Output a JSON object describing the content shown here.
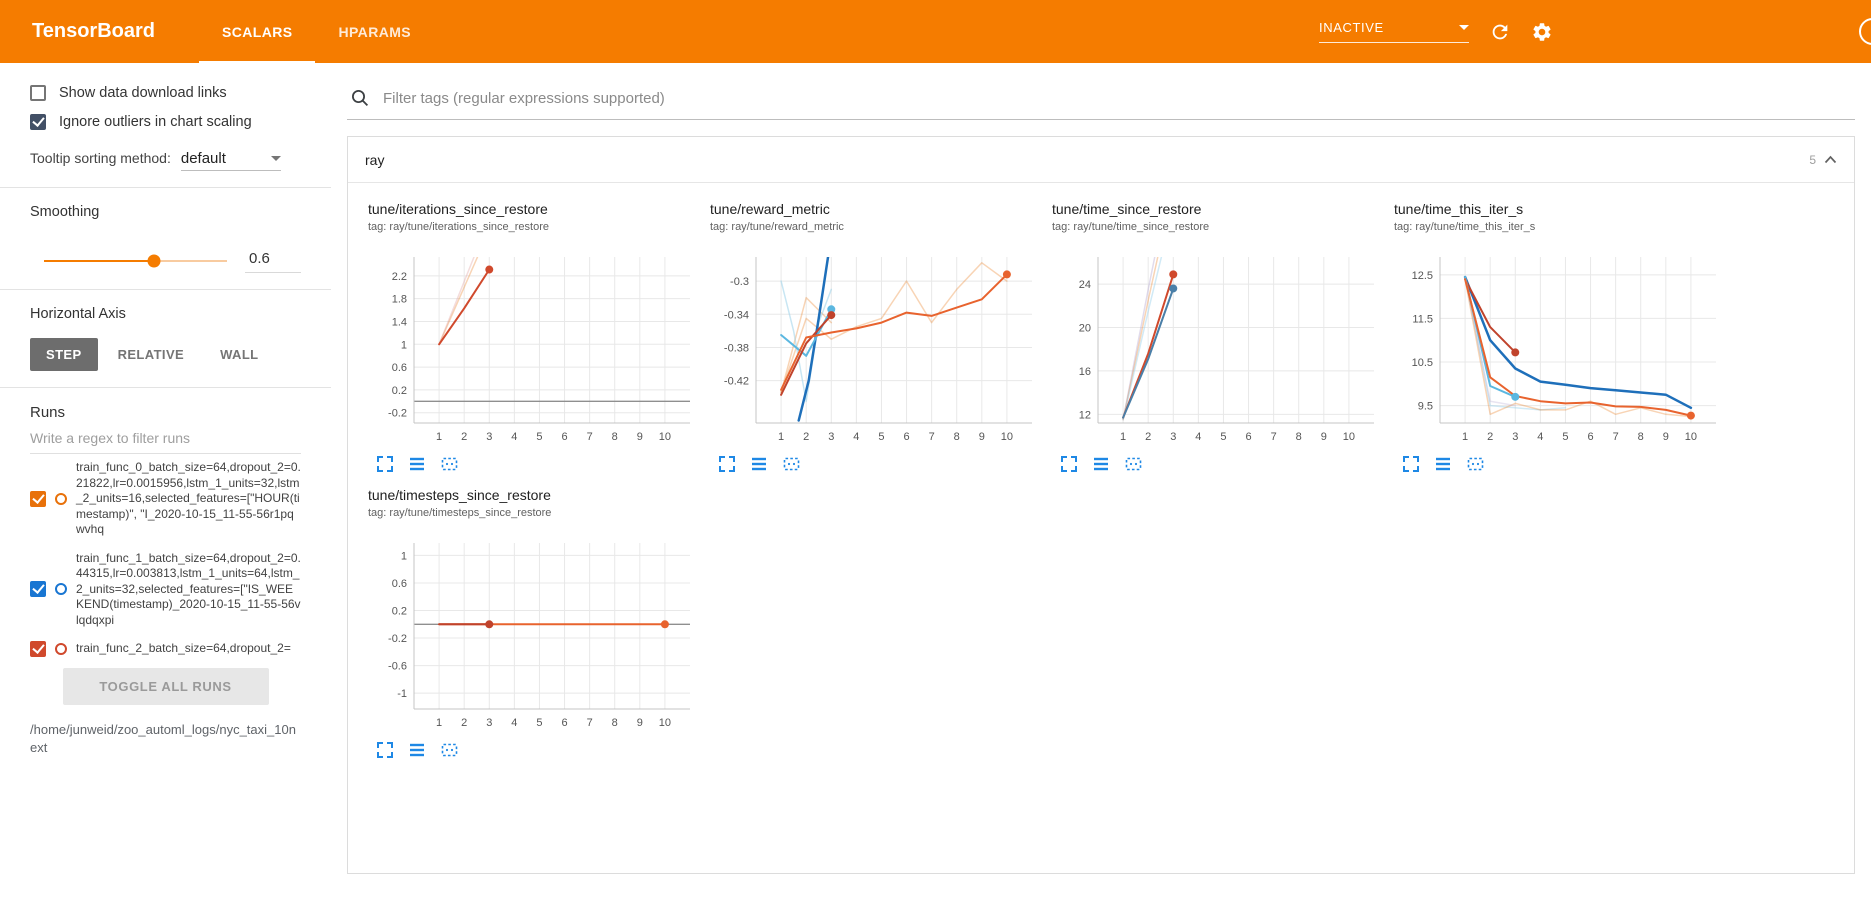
{
  "header": {
    "title": "TensorBoard",
    "tabs": [
      "SCALARS",
      "HPARAMS"
    ],
    "active_tab": "SCALARS",
    "status_dropdown": "INACTIVE",
    "icon_names": [
      "chevron-down-icon",
      "refresh-icon",
      "gear-icon",
      "help-icon"
    ]
  },
  "sidebar": {
    "show_download": {
      "label": "Show data download links",
      "checked": false
    },
    "ignore_outliers": {
      "label": "Ignore outliers in chart scaling",
      "checked": true,
      "check_color": "#425066"
    },
    "tooltip_sorting": {
      "label": "Tooltip sorting method:",
      "value": "default"
    },
    "smoothing": {
      "label": "Smoothing",
      "value": "0.6"
    },
    "horizontal_axis": {
      "label": "Horizontal Axis",
      "options": [
        "STEP",
        "RELATIVE",
        "WALL"
      ],
      "selected": "STEP"
    },
    "runs": {
      "label": "Runs",
      "filter_placeholder": "Write a regex to filter runs",
      "items": [
        {
          "label": "train_func_0_batch_size=64,dropout_2=0.21822,lr=0.0015956,lstm_1_units=32,lstm_2_units=16,selected_features=[\"HOUR(timestamp)\", \"I_2020-10-15_11-55-56r1pqwvhq",
          "checked": true,
          "color": "#e8710a"
        },
        {
          "label": "train_func_1_batch_size=64,dropout_2=0.44315,lr=0.003813,lstm_1_units=64,lstm_2_units=32,selected_features=[\"IS_WEEKEND(timestamp)_2020-10-15_11-55-56vlqdqxpi",
          "checked": true,
          "color": "#1976d2"
        },
        {
          "label": "train_func_2_batch_size=64,dropout_2=",
          "checked": true,
          "color": "#d0492c"
        }
      ],
      "toggle_all_label": "TOGGLE ALL RUNS",
      "log_path": "/home/junweid/zoo_automl_logs/nyc_taxi_10next"
    }
  },
  "main": {
    "filter_placeholder": "Filter tags (regular expressions supported)",
    "group": {
      "name": "ray",
      "count": "5"
    },
    "chart_action_icons": [
      "expand-icon",
      "flush-axis-icon",
      "pin-icon"
    ],
    "accent_blue": "#1e88e5",
    "header_orange": "#f57c00"
  },
  "chart_data": [
    {
      "type": "line",
      "title": "tune/iterations_since_restore",
      "tag": "tag: ray/tune/iterations_since_restore",
      "xlim": [
        0,
        11
      ],
      "ylim": [
        -0.38,
        2.53
      ],
      "xticks": [
        1,
        2,
        3,
        4,
        5,
        6,
        7,
        8,
        9,
        10
      ],
      "yticks": [
        -0.2,
        0.2,
        0.6,
        1,
        1.4,
        1.8,
        2.2
      ],
      "series": [
        {
          "name": "train_func_0 (raw)",
          "color": "#e8710a",
          "opacity": 0.3,
          "width": 1.5,
          "points": [
            [
              1,
              1
            ],
            [
              2,
              2
            ],
            [
              3,
              3
            ]
          ]
        },
        {
          "name": "train_func_2 (raw)",
          "color": "#e09a9a",
          "opacity": 0.35,
          "width": 1.5,
          "points": [
            [
              1,
              1
            ],
            [
              2,
              2.1
            ],
            [
              3,
              3.2
            ]
          ]
        },
        {
          "name": "train_func_0 (smoothed)",
          "color": "#d0492c",
          "width": 2,
          "marker": true,
          "points": [
            [
              1,
              1
            ],
            [
              2,
              1.63
            ],
            [
              3,
              2.31
            ]
          ]
        }
      ]
    },
    {
      "type": "line",
      "title": "tune/reward_metric",
      "tag": "tag: ray/tune/reward_metric",
      "xlim": [
        0,
        11
      ],
      "ylim": [
        -0.471,
        -0.271
      ],
      "xticks": [
        1,
        2,
        3,
        4,
        5,
        6,
        7,
        8,
        9,
        10
      ],
      "yticks": [
        -0.42,
        -0.38,
        -0.34,
        -0.3
      ],
      "series": [
        {
          "name": "orange run (raw)",
          "color": "#e8710a",
          "opacity": 0.3,
          "width": 1.5,
          "points": [
            [
              1,
              -0.434
            ],
            [
              2,
              -0.345
            ],
            [
              3,
              -0.37
            ],
            [
              4,
              -0.355
            ],
            [
              5,
              -0.345
            ],
            [
              6,
              -0.3
            ],
            [
              7,
              -0.35
            ],
            [
              8,
              -0.31
            ],
            [
              9,
              -0.278
            ],
            [
              10,
              -0.3
            ]
          ]
        },
        {
          "name": "orange run 2 (raw)",
          "color": "#e8710a",
          "opacity": 0.3,
          "width": 1.5,
          "points": [
            [
              1,
              -0.434
            ],
            [
              2,
              -0.32
            ],
            [
              3,
              -0.35
            ]
          ]
        },
        {
          "name": "light blue (raw)",
          "color": "#9ad1ea",
          "opacity": 0.55,
          "width": 1.5,
          "points": [
            [
              1,
              -0.3
            ],
            [
              1.5,
              -0.36
            ],
            [
              2,
              -0.445
            ],
            [
              2.5,
              -0.35
            ],
            [
              3,
              -0.31
            ]
          ]
        },
        {
          "name": "blue (smoothed)",
          "color": "#1e6fba",
          "width": 2.5,
          "points": [
            [
              1.7,
              -0.468
            ],
            [
              2.1,
              -0.42
            ],
            [
              2.5,
              -0.345
            ],
            [
              2.9,
              -0.265
            ]
          ]
        },
        {
          "name": "light blue (smoothed)",
          "color": "#5bb7e0",
          "width": 2,
          "marker": true,
          "points": [
            [
              1,
              -0.365
            ],
            [
              2,
              -0.39
            ],
            [
              3,
              -0.334
            ]
          ]
        },
        {
          "name": "dark red (smoothed)",
          "color": "#c0432c",
          "width": 2,
          "marker": true,
          "points": [
            [
              1,
              -0.437
            ],
            [
              2,
              -0.375
            ],
            [
              3,
              -0.341
            ]
          ]
        },
        {
          "name": "orange (smoothed)",
          "color": "#e8632e",
          "width": 2,
          "marker": true,
          "points": [
            [
              1,
              -0.431
            ],
            [
              2,
              -0.368
            ],
            [
              3,
              -0.362
            ],
            [
              4,
              -0.357
            ],
            [
              5,
              -0.35
            ],
            [
              6,
              -0.338
            ],
            [
              7,
              -0.342
            ],
            [
              8,
              -0.332
            ],
            [
              9,
              -0.322
            ],
            [
              10,
              -0.292
            ]
          ]
        }
      ]
    },
    {
      "type": "line",
      "title": "tune/time_since_restore",
      "tag": "tag: ray/tune/time_since_restore",
      "xlim": [
        0,
        11
      ],
      "ylim": [
        11.2,
        26.5
      ],
      "xticks": [
        1,
        2,
        3,
        4,
        5,
        6,
        7,
        8,
        9,
        10
      ],
      "yticks": [
        12,
        16,
        20,
        24
      ],
      "series": [
        {
          "name": "raw a",
          "color": "#b3a6d0",
          "opacity": 0.4,
          "width": 1.5,
          "points": [
            [
              1,
              11.5
            ],
            [
              2,
              23.5
            ],
            [
              3,
              35
            ]
          ]
        },
        {
          "name": "raw b",
          "color": "#e8710a",
          "opacity": 0.3,
          "width": 1.5,
          "points": [
            [
              1,
              11.5
            ],
            [
              2,
              22.5
            ],
            [
              3,
              33
            ]
          ]
        },
        {
          "name": "raw c",
          "color": "#9ad1ea",
          "opacity": 0.45,
          "width": 1.5,
          "points": [
            [
              1,
              11.5
            ],
            [
              2,
              21.5
            ],
            [
              3,
              31
            ]
          ]
        },
        {
          "name": "red (smoothed)",
          "color": "#d0492c",
          "width": 2,
          "marker": true,
          "points": [
            [
              1,
              11.7
            ],
            [
              2,
              17.6
            ],
            [
              3,
              24.9
            ]
          ]
        },
        {
          "name": "blue (smoothed)",
          "color": "#4a7fa8",
          "width": 2,
          "marker": true,
          "points": [
            [
              1,
              11.7
            ],
            [
              2,
              17.1
            ],
            [
              3,
              23.6
            ]
          ]
        }
      ]
    },
    {
      "type": "line",
      "title": "tune/time_this_iter_s",
      "tag": "tag: ray/tune/time_this_iter_s",
      "xlim": [
        0,
        11
      ],
      "ylim": [
        9.1,
        12.91
      ],
      "xticks": [
        1,
        2,
        3,
        4,
        5,
        6,
        7,
        8,
        9,
        10
      ],
      "yticks": [
        9.5,
        10.5,
        11.5,
        12.5
      ],
      "series": [
        {
          "name": "light blue (raw)",
          "color": "#9ad1ea",
          "opacity": 0.45,
          "width": 1.5,
          "points": [
            [
              1,
              12.45
            ],
            [
              2,
              9.5
            ],
            [
              3,
              9.45
            ],
            [
              4,
              9.4
            ],
            [
              5,
              9.45
            ]
          ]
        },
        {
          "name": "orange (raw)",
          "color": "#e8710a",
          "opacity": 0.3,
          "width": 1.5,
          "points": [
            [
              1,
              12.4
            ],
            [
              2,
              9.3
            ],
            [
              3,
              9.55
            ],
            [
              4,
              9.4
            ],
            [
              5,
              9.4
            ],
            [
              6,
              9.6
            ],
            [
              7,
              9.3
            ],
            [
              8,
              9.45
            ],
            [
              9,
              9.3
            ],
            [
              10,
              9.25
            ]
          ]
        },
        {
          "name": "purple (raw)",
          "color": "#b3a6d0",
          "opacity": 0.3,
          "width": 1.5,
          "points": [
            [
              1,
              12.45
            ],
            [
              2,
              9.6
            ],
            [
              3,
              9.5
            ]
          ]
        },
        {
          "name": "blue (smoothed)",
          "color": "#1e6fba",
          "width": 2.5,
          "points": [
            [
              1,
              12.45
            ],
            [
              2,
              11.0
            ],
            [
              3,
              10.35
            ],
            [
              4,
              10.05
            ],
            [
              5,
              9.98
            ],
            [
              6,
              9.9
            ],
            [
              7,
              9.85
            ],
            [
              8,
              9.8
            ],
            [
              9,
              9.75
            ],
            [
              10,
              9.45
            ]
          ]
        },
        {
          "name": "dark red (smoothed)",
          "color": "#c0432c",
          "width": 2,
          "marker": true,
          "points": [
            [
              1,
              12.4
            ],
            [
              2,
              11.3
            ],
            [
              3,
              10.72
            ]
          ]
        },
        {
          "name": "light blue (smoothed)",
          "color": "#5bb7e0",
          "width": 2,
          "marker": true,
          "points": [
            [
              1,
              12.45
            ],
            [
              2,
              9.95
            ],
            [
              3,
              9.7
            ]
          ]
        },
        {
          "name": "orange (smoothed)",
          "color": "#e8632e",
          "width": 2,
          "marker": true,
          "points": [
            [
              1,
              12.4
            ],
            [
              2,
              10.15
            ],
            [
              3,
              9.72
            ],
            [
              4,
              9.6
            ],
            [
              5,
              9.55
            ],
            [
              6,
              9.57
            ],
            [
              7,
              9.48
            ],
            [
              8,
              9.47
            ],
            [
              9,
              9.4
            ],
            [
              10,
              9.27
            ]
          ]
        }
      ]
    },
    {
      "type": "line",
      "title": "tune/timesteps_since_restore",
      "tag": "tag: ray/tune/timesteps_since_restore",
      "xlim": [
        0,
        11
      ],
      "ylim": [
        -1.23,
        1.18
      ],
      "xticks": [
        1,
        2,
        3,
        4,
        5,
        6,
        7,
        8,
        9,
        10
      ],
      "yticks": [
        -1,
        -0.6,
        -0.2,
        0.2,
        0.6,
        1
      ],
      "series": [
        {
          "name": "orange (smoothed)",
          "color": "#e8632e",
          "width": 2,
          "marker": true,
          "points": [
            [
              1,
              0
            ],
            [
              10,
              0
            ]
          ]
        },
        {
          "name": "dark red (smoothed)",
          "color": "#c0432c",
          "width": 2,
          "marker": true,
          "points": [
            [
              1,
              0
            ],
            [
              3,
              0
            ]
          ]
        }
      ]
    }
  ]
}
